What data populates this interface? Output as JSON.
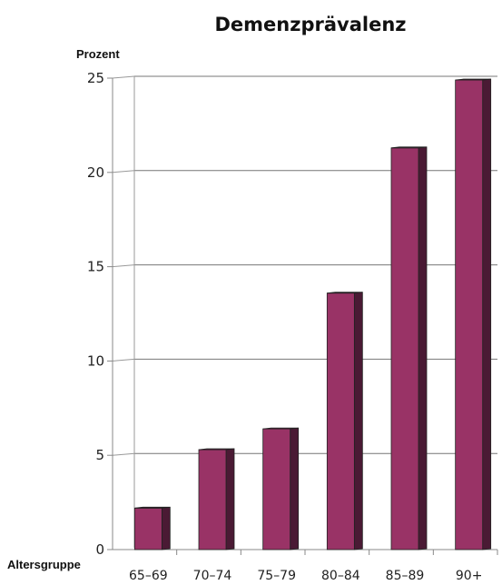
{
  "chart_data": {
    "type": "bar",
    "title": "Demenzprävalenz",
    "ylabel": "Prozent",
    "xlabel": "Altersgruppe",
    "categories": [
      "65–69",
      "70–74",
      "75–79",
      "80–84",
      "85–89",
      "90+"
    ],
    "values": [
      2.2,
      5.3,
      6.4,
      13.6,
      21.3,
      24.9
    ],
    "ylim": [
      0,
      25
    ],
    "yticks": [
      0,
      5,
      10,
      15,
      20,
      25
    ],
    "grid": true,
    "colors": {
      "bar_front": "#993366",
      "bar_side": "#4a1a34",
      "bar_top": "#6b2447",
      "axis": "#888888"
    }
  }
}
